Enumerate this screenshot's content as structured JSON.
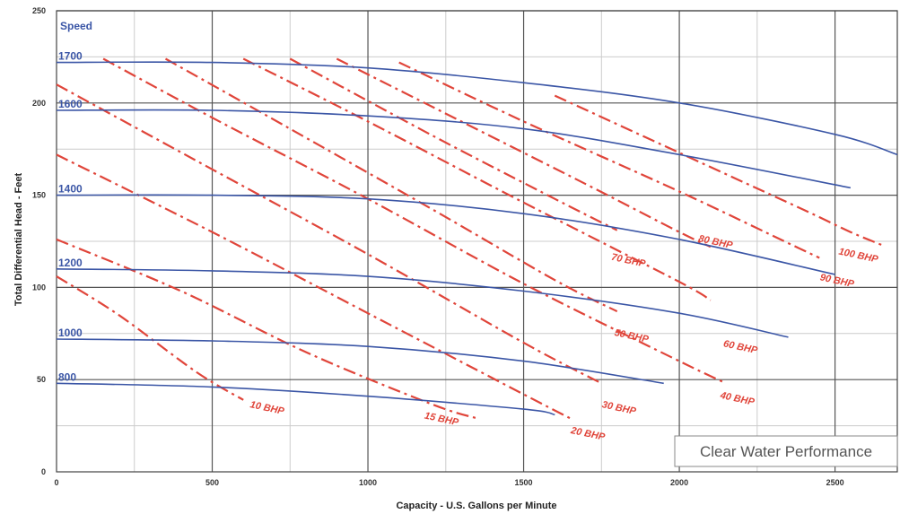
{
  "chart_data": {
    "type": "line",
    "title": "",
    "annotation": "Clear Water Performance",
    "legend_title": "Speed",
    "xlabel": "Capacity - U.S. Gallons per Minute",
    "ylabel": "Total Differential Head - Feet",
    "xlim": [
      0,
      2700
    ],
    "ylim": [
      0,
      250
    ],
    "x_ticks": [
      "0",
      "500",
      "1000",
      "1500",
      "2000",
      "2500"
    ],
    "y_ticks": [
      "0",
      "50",
      "100",
      "150",
      "200",
      "250"
    ],
    "grid": true,
    "speed_curves": [
      {
        "name": "1700",
        "x": [
          0,
          500,
          1000,
          1500,
          2000,
          2500,
          2700
        ],
        "y": [
          222,
          222,
          219,
          211,
          200,
          183,
          172
        ]
      },
      {
        "name": "1600",
        "x": [
          0,
          500,
          1000,
          1500,
          2000,
          2550
        ],
        "y": [
          196,
          196,
          193,
          186,
          172,
          154
        ]
      },
      {
        "name": "1400",
        "x": [
          0,
          500,
          1000,
          1500,
          2000,
          2500
        ],
        "y": [
          150,
          150,
          148,
          140,
          126,
          107
        ]
      },
      {
        "name": "1200",
        "x": [
          0,
          500,
          1000,
          1500,
          2000,
          2350
        ],
        "y": [
          110,
          109,
          106,
          98,
          86,
          73
        ]
      },
      {
        "name": "1000",
        "x": [
          0,
          500,
          1000,
          1500,
          1950
        ],
        "y": [
          72,
          71,
          68,
          60,
          48
        ]
      },
      {
        "name": "800",
        "x": [
          0,
          500,
          1000,
          1500,
          1600
        ],
        "y": [
          48,
          46,
          41,
          34,
          31
        ]
      }
    ],
    "bhp_lines": [
      {
        "name": "10 BHP",
        "x": [
          0,
          200,
          450,
          600
        ],
        "y": [
          106,
          85,
          54,
          39
        ]
      },
      {
        "name": "15 BHP",
        "x": [
          0,
          400,
          800,
          1200,
          1350
        ],
        "y": [
          126,
          98,
          65,
          37,
          29
        ]
      },
      {
        "name": "20 BHP",
        "x": [
          0,
          500,
          1000,
          1500,
          1650
        ],
        "y": [
          172,
          130,
          86,
          42,
          29
        ]
      },
      {
        "name": "30 BHP",
        "x": [
          0,
          500,
          1000,
          1500,
          1750
        ],
        "y": [
          210,
          164,
          118,
          70,
          48
        ]
      },
      {
        "name": "40 BHP",
        "x": [
          150,
          500,
          1000,
          1500,
          2000,
          2150
        ],
        "y": [
          224,
          192,
          148,
          102,
          60,
          48
        ]
      },
      {
        "name": "50 BHP",
        "x": [
          350,
          750,
          1200,
          1600,
          1800
        ],
        "y": [
          224,
          186,
          143,
          104,
          87
        ]
      },
      {
        "name": "60 BHP",
        "x": [
          600,
          1000,
          1500,
          2000,
          2100
        ],
        "y": [
          224,
          190,
          146,
          103,
          93
        ]
      },
      {
        "name": "70 BHP",
        "x": [
          750,
          1200,
          1600,
          1800
        ],
        "y": [
          224,
          183,
          148,
          131
        ]
      },
      {
        "name": "80 BHP",
        "x": [
          900,
          1300,
          1700,
          2000,
          2100
        ],
        "y": [
          224,
          190,
          156,
          130,
          122
        ]
      },
      {
        "name": "90 BHP",
        "x": [
          1100,
          1500,
          2000,
          2350,
          2450
        ],
        "y": [
          222,
          190,
          152,
          124,
          116
        ]
      },
      {
        "name": "100 BHP",
        "x": [
          1600,
          2000,
          2400,
          2550,
          2650
        ],
        "y": [
          204,
          173,
          142,
          130,
          123
        ]
      }
    ],
    "bhp_label_positions": [
      {
        "name": "10 BHP",
        "x": 620,
        "y": 35
      },
      {
        "name": "15 BHP",
        "x": 1180,
        "y": 29
      },
      {
        "name": "20 BHP",
        "x": 1650,
        "y": 21
      },
      {
        "name": "30 BHP",
        "x": 1750,
        "y": 35
      },
      {
        "name": "40 BHP",
        "x": 2130,
        "y": 40
      },
      {
        "name": "50 BHP",
        "x": 1790,
        "y": 74
      },
      {
        "name": "60 BHP",
        "x": 2140,
        "y": 68
      },
      {
        "name": "70 BHP",
        "x": 1780,
        "y": 115
      },
      {
        "name": "80 BHP",
        "x": 2060,
        "y": 125
      },
      {
        "name": "90 BHP",
        "x": 2450,
        "y": 104
      },
      {
        "name": "100 BHP",
        "x": 2510,
        "y": 118
      }
    ],
    "colors": {
      "speed": "#3b56a6",
      "bhp": "#e0453a",
      "grid_major": "#555555",
      "grid_minor": "#cccccc"
    }
  }
}
